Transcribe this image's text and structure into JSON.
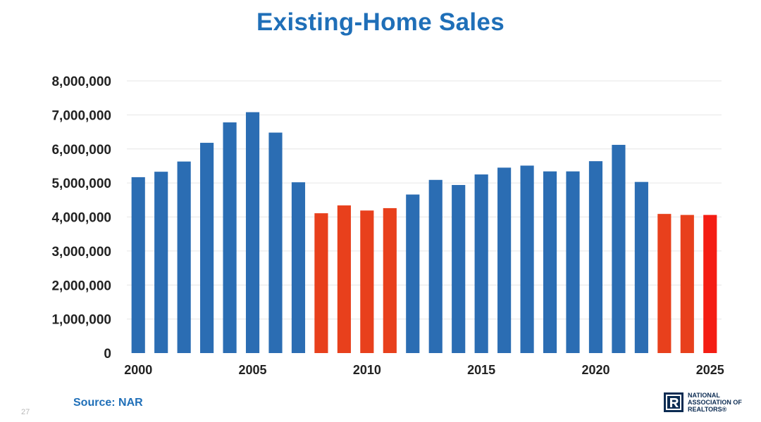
{
  "title": "Existing-Home Sales",
  "source": "Source: NAR",
  "page_number": "27",
  "logo": {
    "lines": [
      "NATIONAL",
      "ASSOCIATION OF",
      "REALTORS®"
    ],
    "color": "#0b2b52"
  },
  "colors": {
    "title": "#1f6fb8",
    "bar_blue": "#2b6db3",
    "bar_orange": "#e8401c",
    "bar_red": "#f41d13",
    "gridline": "#e6e6e6",
    "axis_text": "#222222"
  },
  "chart_data": {
    "type": "bar",
    "title": "Existing-Home Sales",
    "xlabel": "",
    "ylabel": "",
    "ylim": [
      0,
      8000000
    ],
    "yticks": [
      0,
      1000000,
      2000000,
      3000000,
      4000000,
      5000000,
      6000000,
      7000000,
      8000000
    ],
    "ytick_labels": [
      "0",
      "1,000,000",
      "2,000,000",
      "3,000,000",
      "4,000,000",
      "5,000,000",
      "6,000,000",
      "7,000,000",
      "8,000,000"
    ],
    "xtick_labels": [
      "2000",
      "2005",
      "2010",
      "2015",
      "2020",
      "2025"
    ],
    "grid": true,
    "legend": "none",
    "categories": [
      "2000",
      "2001",
      "2002",
      "2003",
      "2004",
      "2005",
      "2006",
      "2007",
      "2008",
      "2009",
      "2010",
      "2011",
      "2012",
      "2013",
      "2014",
      "2015",
      "2016",
      "2017",
      "2018",
      "2019",
      "2020",
      "2021",
      "2022",
      "2023",
      "2024",
      "2025"
    ],
    "values": [
      5170000,
      5330000,
      5630000,
      6180000,
      6780000,
      7080000,
      6480000,
      5020000,
      4110000,
      4340000,
      4190000,
      4260000,
      4660000,
      5090000,
      4940000,
      5250000,
      5450000,
      5510000,
      5340000,
      5340000,
      5640000,
      6120000,
      5030000,
      4090000,
      4060000,
      4060000
    ],
    "bar_colors": [
      "#2b6db3",
      "#2b6db3",
      "#2b6db3",
      "#2b6db3",
      "#2b6db3",
      "#2b6db3",
      "#2b6db3",
      "#2b6db3",
      "#e8401c",
      "#e8401c",
      "#e8401c",
      "#e8401c",
      "#2b6db3",
      "#2b6db3",
      "#2b6db3",
      "#2b6db3",
      "#2b6db3",
      "#2b6db3",
      "#2b6db3",
      "#2b6db3",
      "#2b6db3",
      "#2b6db3",
      "#2b6db3",
      "#e8401c",
      "#e8401c",
      "#f41d13"
    ]
  }
}
